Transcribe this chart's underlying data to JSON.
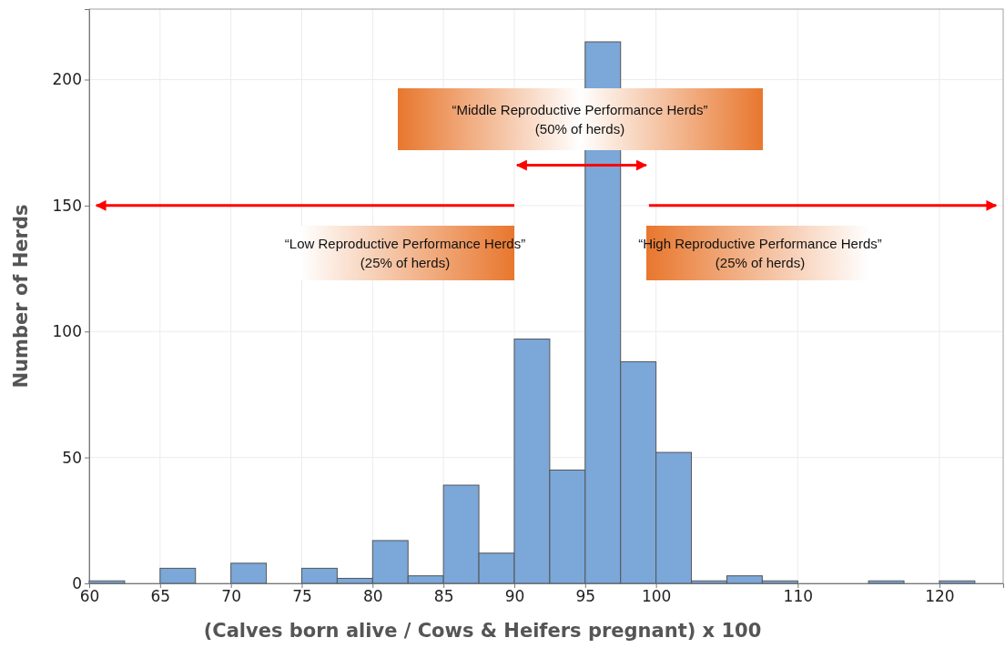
{
  "chart_data": {
    "type": "histogram",
    "xlabel": "(Calves born alive / Cows & Heifers pregnant) x 100",
    "ylabel": "Number of Herds",
    "bins": [
      60,
      62.5,
      65,
      67.5,
      70,
      72.5,
      75,
      77.5,
      80,
      82.5,
      85,
      87.5,
      90,
      92.5,
      95,
      97.5,
      100,
      102.5,
      105,
      107.5,
      110,
      112.5,
      115,
      117.5,
      120,
      122.5
    ],
    "values": [
      1,
      0,
      6,
      0,
      8,
      0,
      6,
      2,
      17,
      3,
      39,
      12,
      97,
      45,
      215,
      88,
      52,
      1,
      3,
      1,
      0,
      0,
      1,
      0,
      1
    ],
    "color": "#7ba7d9",
    "xlim": [
      60,
      124.5
    ],
    "ylim": [
      0,
      228
    ],
    "xticks": [
      60,
      65,
      70,
      75,
      80,
      85,
      90,
      95,
      100,
      110,
      120
    ],
    "yticks": [
      0,
      50,
      100,
      150,
      200
    ],
    "grid": true,
    "annotations": [
      "“Low Reproductive Performance Herds”\n(25% of herds)",
      "“Middle Reproductive Performance Herds”\n(50% of herds)",
      "“High Reproductive Performance Herds”\n(25% of herds)"
    ]
  }
}
